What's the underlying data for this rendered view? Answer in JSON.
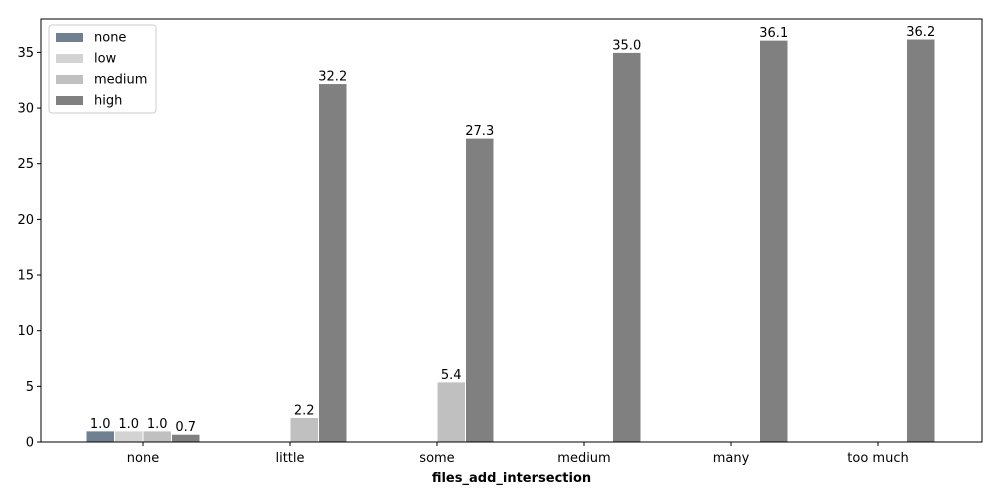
{
  "chart_data": {
    "type": "bar",
    "title": "",
    "xlabel": "files_add_intersection",
    "ylabel": "",
    "categories": [
      "none",
      "little",
      "some",
      "medium",
      "many",
      "too much"
    ],
    "ylim": [
      0,
      38
    ],
    "yticks": [
      0,
      5,
      10,
      15,
      20,
      25,
      30,
      35
    ],
    "grid": false,
    "legend_position": "top-left",
    "series": [
      {
        "name": "none",
        "color": "#708090",
        "values": [
          1.0,
          0,
          0,
          0,
          0,
          0
        ],
        "labels": [
          "1.0",
          "",
          "",
          "",
          "",
          ""
        ]
      },
      {
        "name": "low",
        "color": "#d3d3d3",
        "values": [
          1.0,
          0,
          0,
          0,
          0,
          0
        ],
        "labels": [
          "1.0",
          "",
          "",
          "",
          "",
          ""
        ]
      },
      {
        "name": "medium",
        "color": "#c0c0c0",
        "values": [
          1.0,
          2.2,
          5.4,
          0,
          0,
          0
        ],
        "labels": [
          "1.0",
          "2.2",
          "5.4",
          "",
          "",
          ""
        ]
      },
      {
        "name": "high",
        "color": "#808080",
        "values": [
          0.7,
          32.2,
          27.3,
          35.0,
          36.1,
          36.2
        ],
        "labels": [
          "0.7",
          "32.2",
          "27.3",
          "35.0",
          "36.1",
          "36.2"
        ]
      }
    ]
  }
}
